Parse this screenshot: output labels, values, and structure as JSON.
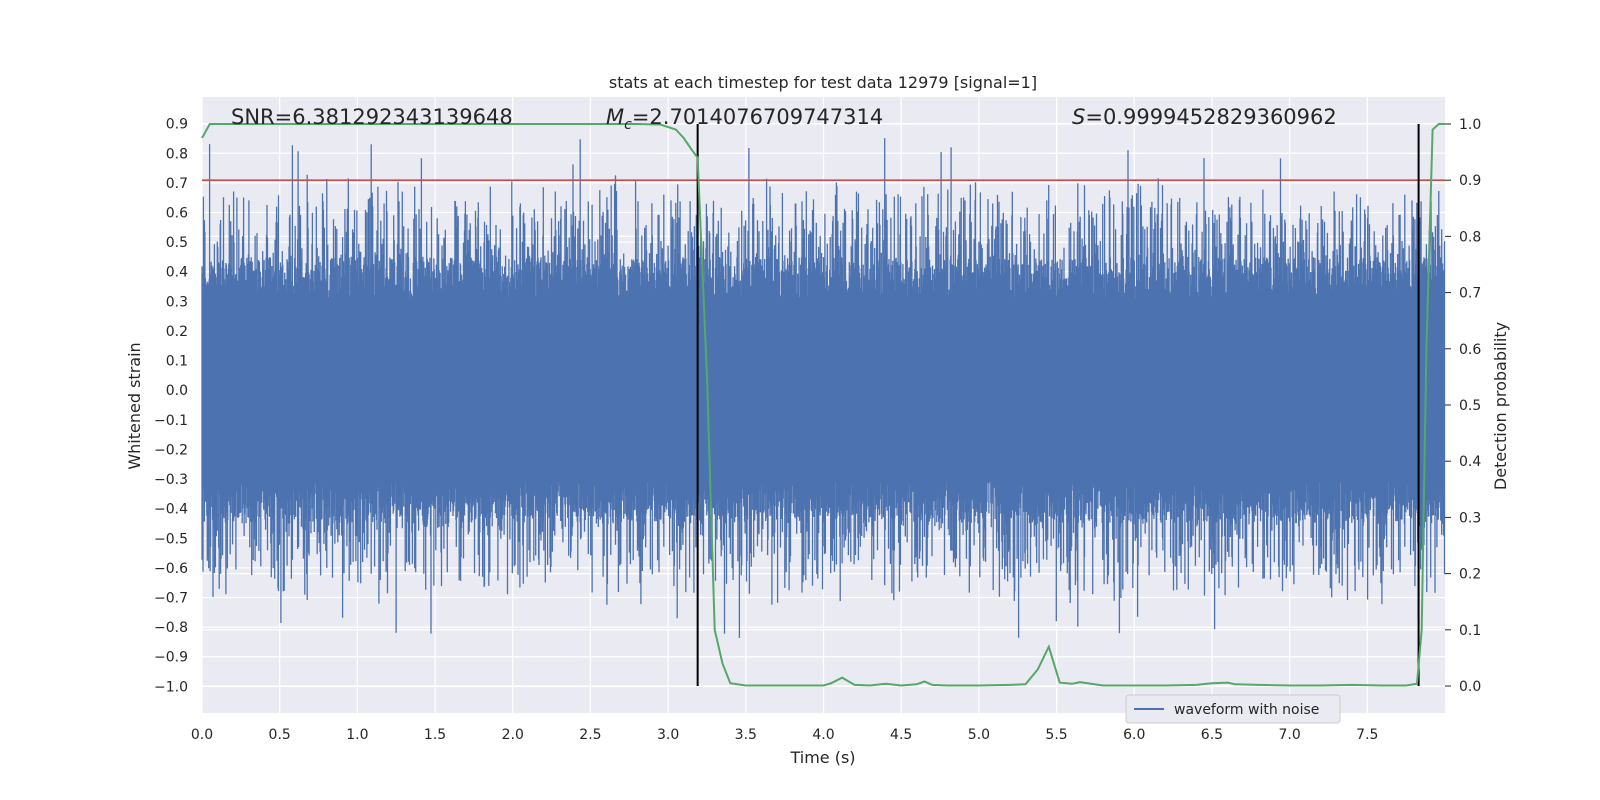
{
  "chart_data": {
    "type": "line",
    "title": "stats at each timestep for test data 12979 [signal=1]",
    "xlabel": "Time (s)",
    "ylabel": "Whitened strain",
    "y2label": "Detection probability",
    "xlim": [
      0.0,
      8.0
    ],
    "ylim": [
      -1.09,
      0.99
    ],
    "y2lim": [
      -0.048,
      1.048
    ],
    "xticks": [
      "0.0",
      "0.5",
      "1.0",
      "1.5",
      "2.0",
      "2.5",
      "3.0",
      "3.5",
      "4.0",
      "4.5",
      "5.0",
      "5.5",
      "6.0",
      "6.5",
      "7.0",
      "7.5"
    ],
    "yticks": [
      "0.9",
      "0.8",
      "0.7",
      "0.6",
      "0.5",
      "0.4",
      "0.3",
      "0.2",
      "0.1",
      "0.0",
      "-0.1",
      "-0.2",
      "-0.3",
      "-0.4",
      "-0.5",
      "-0.6",
      "-0.7",
      "-0.8",
      "-0.9",
      "-1.0"
    ],
    "y2ticks": [
      "1.0",
      "0.9",
      "0.8",
      "0.7",
      "0.6",
      "0.5",
      "0.4",
      "0.3",
      "0.2",
      "0.1",
      "0.0"
    ],
    "grid": true,
    "legend_position": "lower-right",
    "annotations": {
      "snr": "SNR=6.381292343139648",
      "mc_symbol": "M",
      "mc_sub": "c",
      "mc_value": "=2.7014076709747314",
      "s_symbol": "S",
      "s_value": "=0.9999452829360962"
    },
    "threshold_line": {
      "y2": 0.9,
      "color": "#c44e52"
    },
    "vertical_lines": [
      3.19,
      7.83
    ],
    "series": [
      {
        "name": "waveform with noise",
        "axis": "left",
        "color": "#4c72b0",
        "description_values": {
          "dense_noise_envelope": [
            -0.45,
            0.45
          ],
          "max": 0.86,
          "min": -1.0
        }
      },
      {
        "axis": "right",
        "color": "#55a868",
        "x": [
          0.0,
          0.05,
          0.1,
          0.5,
          1.0,
          1.5,
          2.0,
          2.5,
          2.8,
          2.95,
          3.05,
          3.1,
          3.15,
          3.19,
          3.25,
          3.3,
          3.35,
          3.4,
          3.5,
          3.6,
          3.8,
          4.0,
          4.05,
          4.12,
          4.2,
          4.3,
          4.4,
          4.5,
          4.6,
          4.65,
          4.7,
          4.8,
          5.0,
          5.2,
          5.3,
          5.38,
          5.45,
          5.52,
          5.6,
          5.65,
          5.8,
          6.0,
          6.2,
          6.4,
          6.5,
          6.6,
          6.65,
          6.8,
          7.0,
          7.2,
          7.4,
          7.6,
          7.75,
          7.82,
          7.85,
          7.88,
          7.92,
          7.96,
          8.0
        ],
        "y": [
          0.975,
          1.0,
          1.0,
          1.0,
          1.0,
          1.0,
          1.0,
          1.0,
          1.0,
          0.999,
          0.99,
          0.975,
          0.955,
          0.94,
          0.55,
          0.1,
          0.04,
          0.005,
          0.001,
          0.001,
          0.001,
          0.001,
          0.005,
          0.015,
          0.002,
          0.001,
          0.004,
          0.001,
          0.003,
          0.008,
          0.002,
          0.001,
          0.001,
          0.002,
          0.003,
          0.03,
          0.07,
          0.006,
          0.004,
          0.007,
          0.001,
          0.001,
          0.001,
          0.002,
          0.005,
          0.006,
          0.003,
          0.002,
          0.001,
          0.001,
          0.002,
          0.001,
          0.001,
          0.004,
          0.1,
          0.6,
          0.99,
          1.0,
          1.0
        ]
      }
    ]
  }
}
